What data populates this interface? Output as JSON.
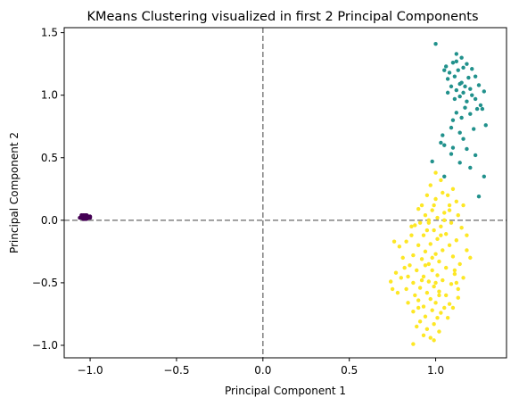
{
  "chart_data": {
    "type": "scatter",
    "title": "KMeans Clustering visualized in first 2 Principal Components",
    "xlabel": "Principal Component 1",
    "ylabel": "Principal Component 2",
    "xlim": [
      -1.15,
      1.41
    ],
    "ylim": [
      -1.1,
      1.54
    ],
    "xticks": [
      -1.0,
      -0.5,
      0.0,
      0.5,
      1.0
    ],
    "xtick_labels": [
      "−1.0",
      "−0.5",
      "0.0",
      "0.5",
      "1.0"
    ],
    "yticks": [
      -1.0,
      -0.5,
      0.0,
      0.5,
      1.0,
      1.5
    ],
    "ytick_labels": [
      "−1.0",
      "−0.5",
      "0.0",
      "0.5",
      "1.0",
      "1.5"
    ],
    "grid": false,
    "reference_lines": {
      "x": 0.0,
      "y": 0.0,
      "color": "#808080",
      "style": "dashed"
    },
    "series": [
      {
        "color": "#440154",
        "points": [
          [
            -1.04,
            0.03
          ],
          [
            -1.03,
            0.02
          ],
          [
            -1.05,
            0.02
          ],
          [
            -1.02,
            0.03
          ],
          [
            -1.04,
            0.01
          ],
          [
            -1.03,
            0.04
          ],
          [
            -1.01,
            0.02
          ],
          [
            -1.05,
            0.04
          ],
          [
            -1.02,
            0.01
          ],
          [
            -1.0,
            0.02
          ],
          [
            -1.04,
            0.02
          ],
          [
            -1.03,
            0.01
          ],
          [
            -1.01,
            0.03
          ],
          [
            -1.05,
            0.03
          ],
          [
            -1.02,
            0.04
          ],
          [
            -1.04,
            0.04
          ],
          [
            -1.03,
            0.03
          ],
          [
            -1.0,
            0.03
          ],
          [
            -1.02,
            0.02
          ],
          [
            -1.06,
            0.02
          ]
        ]
      },
      {
        "color": "#21918c",
        "points": [
          [
            1.0,
            1.41
          ],
          [
            1.12,
            1.33
          ],
          [
            1.15,
            1.3
          ],
          [
            1.1,
            1.26
          ],
          [
            1.06,
            1.23
          ],
          [
            1.12,
            1.27
          ],
          [
            1.18,
            1.25
          ],
          [
            1.21,
            1.21
          ],
          [
            1.05,
            1.2
          ],
          [
            1.08,
            1.18
          ],
          [
            1.16,
            1.22
          ],
          [
            1.19,
            1.14
          ],
          [
            1.07,
            1.13
          ],
          [
            1.23,
            1.15
          ],
          [
            1.11,
            1.15
          ],
          [
            1.14,
            1.09
          ],
          [
            1.17,
            1.07
          ],
          [
            1.2,
            1.05
          ],
          [
            1.09,
            1.07
          ],
          [
            1.15,
            1.1
          ],
          [
            1.12,
            1.04
          ],
          [
            1.25,
            1.08
          ],
          [
            1.28,
            1.03
          ],
          [
            1.16,
            1.02
          ],
          [
            1.21,
            1.0
          ],
          [
            1.14,
            0.99
          ],
          [
            1.07,
            1.02
          ],
          [
            1.11,
            0.97
          ],
          [
            1.18,
            0.95
          ],
          [
            1.23,
            0.97
          ],
          [
            1.17,
            0.9
          ],
          [
            1.24,
            0.89
          ],
          [
            1.27,
            0.89
          ],
          [
            1.12,
            0.86
          ],
          [
            1.15,
            0.82
          ],
          [
            1.1,
            0.8
          ],
          [
            1.2,
            0.85
          ],
          [
            1.29,
            0.76
          ],
          [
            1.09,
            0.74
          ],
          [
            1.14,
            0.7
          ],
          [
            1.04,
            0.68
          ],
          [
            1.22,
            0.73
          ],
          [
            1.05,
            0.6
          ],
          [
            1.1,
            0.58
          ],
          [
            1.16,
            0.65
          ],
          [
            1.03,
            0.62
          ],
          [
            1.09,
            0.53
          ],
          [
            1.18,
            0.57
          ],
          [
            1.23,
            0.52
          ],
          [
            0.98,
            0.47
          ],
          [
            1.2,
            0.42
          ],
          [
            1.28,
            0.35
          ],
          [
            1.05,
            0.35
          ],
          [
            1.25,
            0.19
          ],
          [
            1.14,
            0.46
          ],
          [
            1.26,
            0.92
          ],
          [
            1.13,
            1.2
          ]
        ]
      },
      {
        "color": "#fde725",
        "points": [
          [
            1.0,
            0.38
          ],
          [
            1.03,
            0.32
          ],
          [
            0.97,
            0.28
          ],
          [
            1.1,
            0.25
          ],
          [
            1.04,
            0.22
          ],
          [
            0.95,
            0.2
          ],
          [
            1.12,
            0.15
          ],
          [
            1.0,
            0.17
          ],
          [
            1.08,
            0.12
          ],
          [
            1.16,
            0.12
          ],
          [
            0.92,
            0.12
          ],
          [
            0.98,
            0.08
          ],
          [
            1.05,
            0.06
          ],
          [
            1.13,
            0.04
          ],
          [
            1.01,
            0.02
          ],
          [
            0.94,
            0.04
          ],
          [
            0.9,
            0.09
          ],
          [
            1.09,
            -0.02
          ],
          [
            0.96,
            -0.02
          ],
          [
            1.03,
            -0.05
          ],
          [
            0.88,
            -0.04
          ],
          [
            1.15,
            -0.06
          ],
          [
            0.99,
            -0.08
          ],
          [
            1.06,
            -0.11
          ],
          [
            0.93,
            -0.12
          ],
          [
            0.86,
            -0.12
          ],
          [
            1.01,
            -0.15
          ],
          [
            1.12,
            -0.16
          ],
          [
            0.97,
            -0.19
          ],
          [
            1.08,
            -0.2
          ],
          [
            0.9,
            -0.2
          ],
          [
            0.83,
            -0.17
          ],
          [
            0.76,
            -0.17
          ],
          [
            0.79,
            -0.21
          ],
          [
            1.04,
            -0.24
          ],
          [
            0.94,
            -0.25
          ],
          [
            1.18,
            -0.24
          ],
          [
            1.0,
            -0.27
          ],
          [
            0.87,
            -0.28
          ],
          [
            1.1,
            -0.29
          ],
          [
            0.92,
            -0.31
          ],
          [
            0.81,
            -0.3
          ],
          [
            1.02,
            -0.33
          ],
          [
            0.96,
            -0.35
          ],
          [
            1.14,
            -0.35
          ],
          [
            0.85,
            -0.36
          ],
          [
            1.06,
            -0.38
          ],
          [
            0.98,
            -0.4
          ],
          [
            0.89,
            -0.4
          ],
          [
            0.77,
            -0.42
          ],
          [
            1.11,
            -0.43
          ],
          [
            1.01,
            -0.44
          ],
          [
            0.93,
            -0.45
          ],
          [
            0.8,
            -0.46
          ],
          [
            1.16,
            -0.46
          ],
          [
            1.04,
            -0.48
          ],
          [
            0.96,
            -0.49
          ],
          [
            0.87,
            -0.5
          ],
          [
            0.74,
            -0.49
          ],
          [
            1.09,
            -0.51
          ],
          [
            0.99,
            -0.53
          ],
          [
            0.91,
            -0.54
          ],
          [
            0.83,
            -0.55
          ],
          [
            1.13,
            -0.55
          ],
          [
            1.02,
            -0.57
          ],
          [
            0.95,
            -0.58
          ],
          [
            0.78,
            -0.58
          ],
          [
            0.88,
            -0.6
          ],
          [
            1.06,
            -0.6
          ],
          [
            0.97,
            -0.63
          ],
          [
            0.9,
            -0.64
          ],
          [
            1.0,
            -0.66
          ],
          [
            0.84,
            -0.66
          ],
          [
            1.08,
            -0.67
          ],
          [
            0.93,
            -0.69
          ],
          [
            0.98,
            -0.72
          ],
          [
            0.87,
            -0.73
          ],
          [
            1.03,
            -0.74
          ],
          [
            0.94,
            -0.77
          ],
          [
            1.07,
            -0.78
          ],
          [
            0.91,
            -0.81
          ],
          [
            0.99,
            -0.83
          ],
          [
            0.95,
            -0.87
          ],
          [
            1.02,
            -0.89
          ],
          [
            0.93,
            -0.92
          ],
          [
            0.97,
            -0.94
          ],
          [
            0.99,
            -0.96
          ],
          [
            0.87,
            -0.99
          ],
          [
            1.1,
            -0.7
          ],
          [
            1.13,
            -0.62
          ],
          [
            0.82,
            -0.38
          ],
          [
            0.75,
            -0.55
          ],
          [
            1.18,
            -0.12
          ],
          [
            1.2,
            -0.3
          ],
          [
            1.05,
            0.0
          ],
          [
            0.91,
            -0.02
          ],
          [
            0.99,
            0.12
          ],
          [
            1.07,
            0.2
          ],
          [
            1.11,
            -0.4
          ],
          [
            1.0,
            -0.5
          ],
          [
            0.86,
            -0.05
          ],
          [
            0.98,
            -0.3
          ],
          [
            1.05,
            -0.7
          ],
          [
            0.92,
            -0.48
          ],
          [
            0.89,
            -0.85
          ],
          [
            1.03,
            -0.12
          ],
          [
            0.95,
            -0.08
          ],
          [
            1.12,
            -0.5
          ],
          [
            0.84,
            -0.45
          ],
          [
            1.02,
            -0.6
          ],
          [
            0.96,
            0.0
          ],
          [
            1.08,
            0.08
          ],
          [
            0.94,
            -0.36
          ],
          [
            1.01,
            -0.78
          ],
          [
            0.9,
            -0.7
          ]
        ]
      }
    ]
  }
}
